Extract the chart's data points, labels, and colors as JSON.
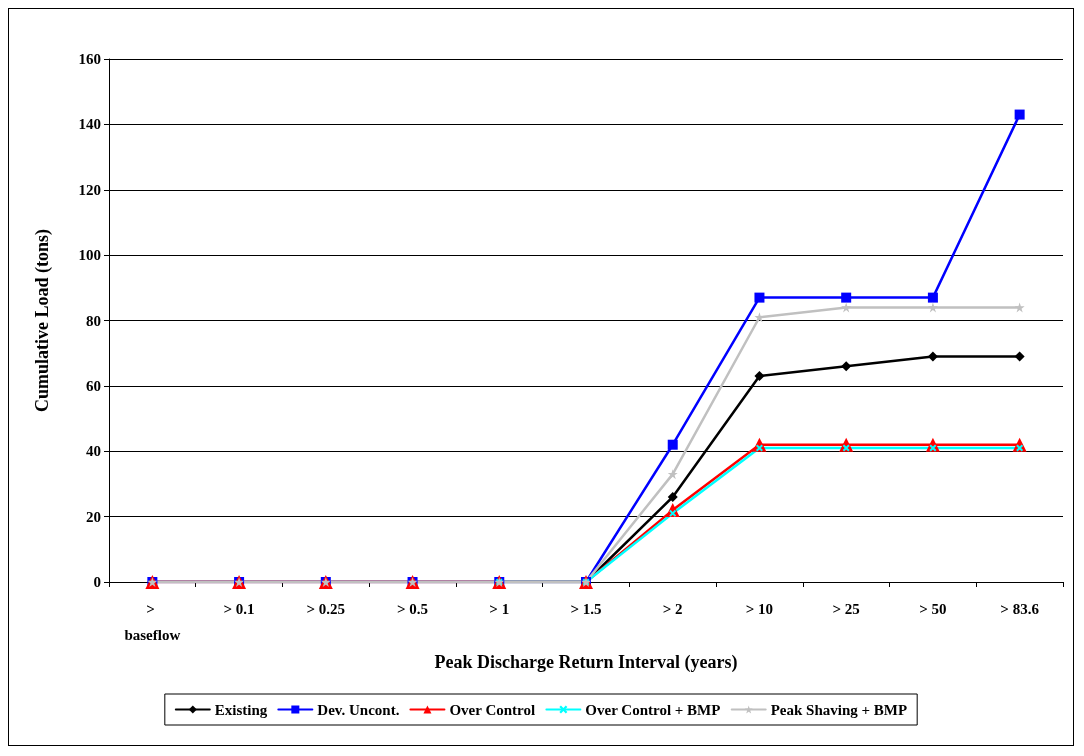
{
  "chart_data": {
    "type": "line",
    "xlabel": "Peak Discharge Return Interval (years)",
    "ylabel": "Cumulative Load (tons)",
    "categories": [
      "> baseflow",
      "> 0.1",
      "> 0.25",
      "> 0.5",
      "> 1",
      "> 1.5",
      "> 2",
      "> 10",
      "> 25",
      "> 50",
      "> 83.6"
    ],
    "series": [
      {
        "name": "Existing",
        "color": "#000000",
        "marker": "diamond",
        "values": [
          0,
          0,
          0,
          0,
          0,
          0,
          26,
          63,
          66,
          69,
          69
        ]
      },
      {
        "name": "Dev. Uncont.",
        "color": "#0000ff",
        "marker": "square",
        "values": [
          0,
          0,
          0,
          0,
          0,
          0,
          42,
          87,
          87,
          87,
          143
        ]
      },
      {
        "name": "Over Control",
        "color": "#ff0000",
        "marker": "triangle",
        "values": [
          0,
          0,
          0,
          0,
          0,
          0,
          22,
          42,
          42,
          42,
          42
        ]
      },
      {
        "name": "Over Control + BMP",
        "color": "#00ffff",
        "marker": "cross",
        "values": [
          null,
          null,
          null,
          null,
          0,
          0,
          21,
          41,
          41,
          41,
          41
        ]
      },
      {
        "name": "Peak Shaving + BMP",
        "color": "#c0c0c0",
        "marker": "star",
        "values": [
          0,
          0,
          0,
          0,
          0,
          0,
          33,
          81,
          84,
          84,
          84
        ]
      }
    ],
    "ylim": [
      0,
      160
    ],
    "yticks": [
      0,
      20,
      40,
      60,
      80,
      100,
      120,
      140,
      160
    ],
    "grid": "y",
    "legend": "bottom"
  }
}
